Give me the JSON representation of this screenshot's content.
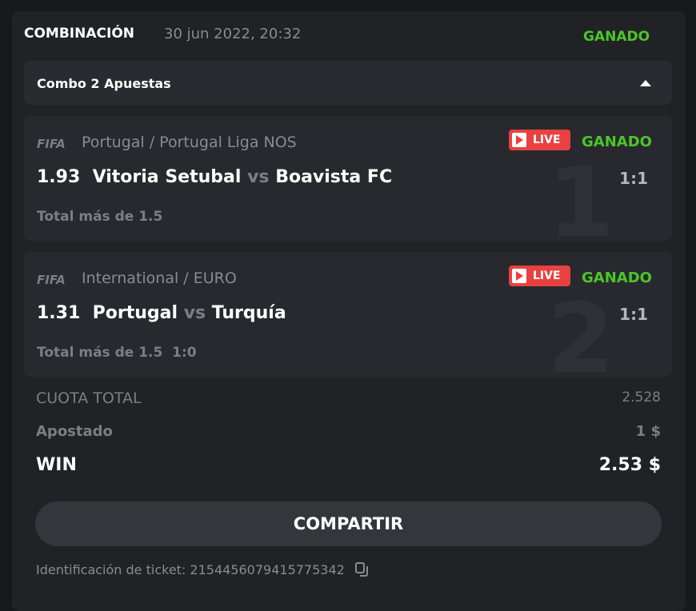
{
  "header": {
    "type": "COMBINACIÓN",
    "datetime": "30 jun 2022, 20:32",
    "status": "GANADO"
  },
  "combo": {
    "label": "Combo 2 Apuestas",
    "toggle_icon": "caret-up-icon"
  },
  "bets": [
    {
      "index": "1",
      "logo": "FIFA",
      "league": "Portugal / Portugal Liga NOS",
      "live": "LIVE",
      "status": "GANADO",
      "odds": "1.93",
      "home": "Vitoria Setubal",
      "vs": "vs",
      "away": "Boavista FC",
      "score": "1:1",
      "selection": "Total más de 1.5",
      "extra": ""
    },
    {
      "index": "2",
      "logo": "FIFA",
      "league": "International / EURO",
      "live": "LIVE",
      "status": "GANADO",
      "odds": "1.31",
      "home": "Portugal",
      "vs": "vs",
      "away": "Turquía",
      "score": "1:1",
      "selection": "Total más de 1.5",
      "extra": "1:0"
    }
  ],
  "summary": {
    "total_odds_label": "CUOTA TOTAL",
    "total_odds": "2.528",
    "staked_label": "Apostado",
    "staked": "1 $",
    "win_label": "WIN",
    "win": "2.53 $"
  },
  "share_label": "COMPARTIR",
  "ticket": {
    "label": "Identificación de ticket: 2154456079415775342",
    "copy_icon": "copy-icon"
  },
  "colors": {
    "green": "#4cc52a",
    "live": "#e94141"
  }
}
